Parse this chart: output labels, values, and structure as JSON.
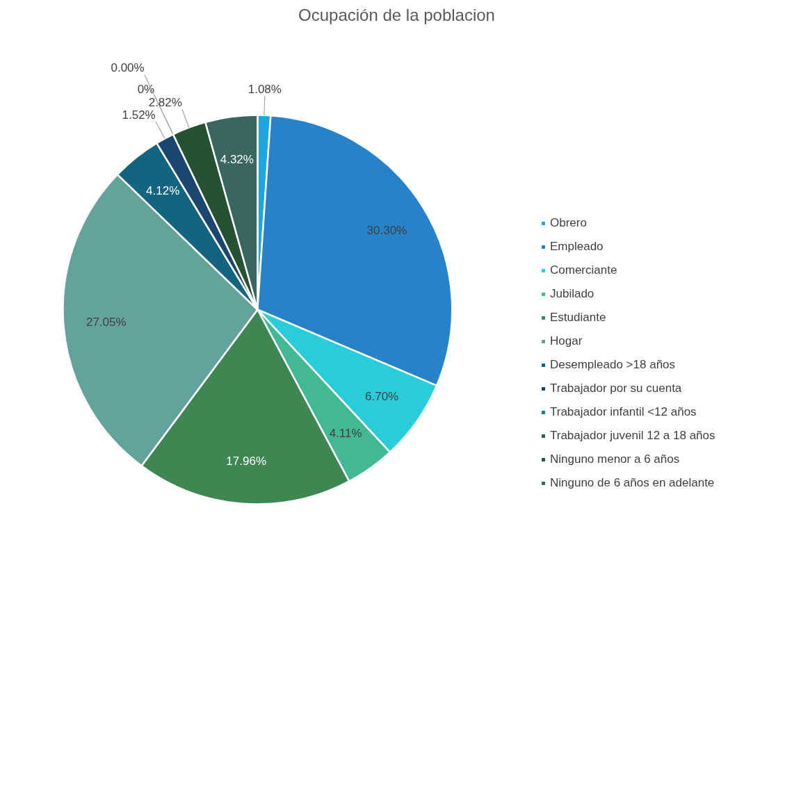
{
  "chart_data": {
    "type": "pie",
    "title": "Ocupación de la poblacion",
    "categories": [
      "Obrero",
      "Empleado",
      "Comerciante",
      "Jubilado",
      "Estudiante",
      "Hogar",
      "Desempleado >18 años",
      "Trabajador por su cuenta",
      "Trabajador infantil <12 años",
      "Trabajador juvenil 12 a 18 años",
      "Ninguno menor a 6 años",
      "Ninguno de 6 años en adelante"
    ],
    "values": [
      1.08,
      30.3,
      6.7,
      4.11,
      17.96,
      27.05,
      4.12,
      1.52,
      0,
      0.0,
      2.82,
      4.32
    ],
    "value_labels": [
      "1.08%",
      "30.30%",
      "6.70%",
      "4.11%",
      "17.96%",
      "27.05%",
      "4.12%",
      "1.52%",
      "0%",
      "0.00%",
      "2.82%",
      "4.32%"
    ],
    "colors": [
      "#1ea6e0",
      "#2882c8",
      "#29ccd8",
      "#43b896",
      "#3e8752",
      "#63a39b",
      "#13647f",
      "#1b466e",
      "#177a7c",
      "#1f6b4a",
      "#245233",
      "#3a6660"
    ],
    "legend": "right"
  }
}
